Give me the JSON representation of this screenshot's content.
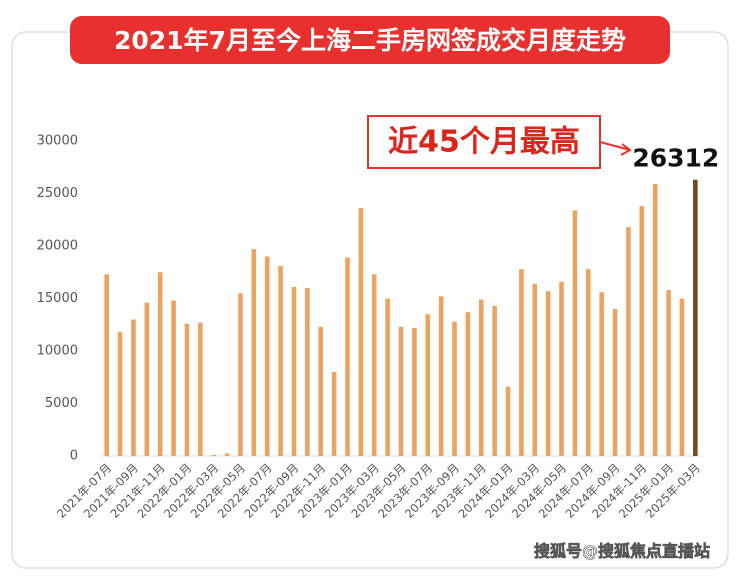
{
  "chart_data": {
    "type": "bar",
    "title": "2021年7月至今上海二手房网签成交月度走势",
    "annotation": "近45个月最高",
    "watermark": "搜狐号@搜狐焦点直播站",
    "categories": [
      "2021年-07月",
      null,
      "2021年-09月",
      null,
      "2021年-11月",
      null,
      "2022年-01月",
      null,
      "2022年-03月",
      null,
      "2022年-05月",
      null,
      "2022年-07月",
      null,
      "2022年-09月",
      null,
      "2022年-11月",
      null,
      "2023年-01月",
      null,
      "2023年-03月",
      null,
      "2023年-05月",
      null,
      "2023年-07月",
      null,
      "2023年-09月",
      null,
      "2023年-11月",
      null,
      "2024年-01月",
      null,
      "2024年-03月",
      null,
      "2024年-05月",
      null,
      "2024年-07月",
      null,
      "2024年-09月",
      null,
      "2024年-11月",
      null,
      "2025年-01月",
      null,
      "2025年-03月"
    ],
    "values": [
      17300,
      11800,
      13000,
      14600,
      17500,
      14800,
      12600,
      12700,
      100,
      250,
      15500,
      19700,
      19000,
      18100,
      16100,
      16000,
      12300,
      8000,
      18900,
      23600,
      17300,
      15000,
      12300,
      12200,
      13500,
      15200,
      12800,
      13700,
      14900,
      14300,
      6600,
      17800,
      16400,
      15700,
      16600,
      23400,
      17800,
      15600,
      14000,
      21800,
      23800,
      25900,
      15800,
      15000,
      26312
    ],
    "color": "#e9a461",
    "highlight_color": "#7a4a1e",
    "ylim": [
      0,
      30000
    ],
    "yticks": [
      0,
      5000,
      10000,
      15000,
      20000,
      25000,
      30000
    ]
  }
}
